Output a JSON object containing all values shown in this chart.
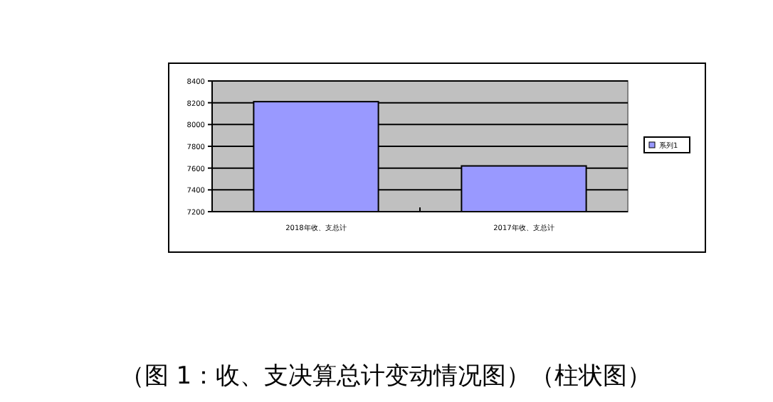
{
  "chart_data": {
    "type": "bar",
    "categories": [
      "2018年收、支总计",
      "2017年收、支总计"
    ],
    "series": [
      {
        "name": "系列1",
        "color": "#9999ff",
        "values": [
          8210,
          7620
        ]
      }
    ],
    "ylim": [
      7200,
      8400
    ],
    "yticks": [
      7200,
      7400,
      7600,
      7800,
      8000,
      8200,
      8400
    ],
    "grid": "y",
    "legend": "right",
    "annotations": [
      "（图 1：收、支决算总计变动情况图）（柱状图）"
    ]
  }
}
